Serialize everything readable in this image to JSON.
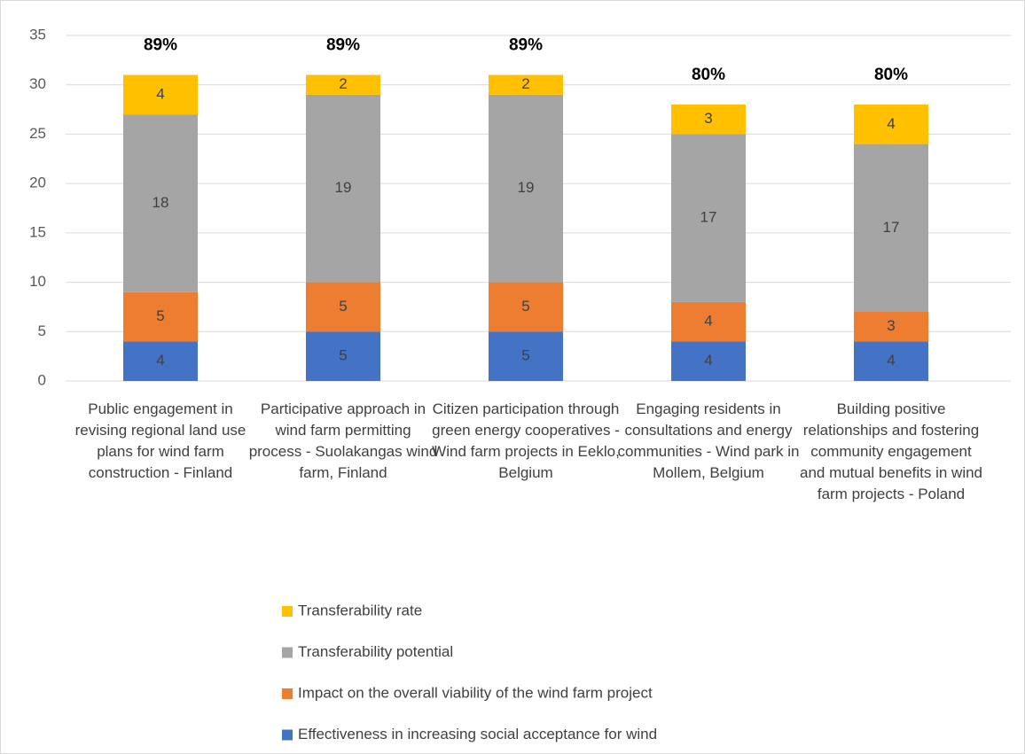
{
  "chart_data": {
    "type": "stacked_bar",
    "categories": [
      "Public engagement in revising regional land use plans for wind farm construction - Finland",
      "Participative approach in wind farm permitting process - Suolakangas wind farm, Finland",
      "Citizen participation through green energy cooperatives - Wind farm projects in Eeklo, Belgium",
      "Engaging residents in consultations and energy communities - Wind park in Mollem, Belgium",
      "Building positive relationships and fostering community engagement and mutual benefits in wind farm projects - Poland"
    ],
    "series": [
      {
        "name": "Effectiveness in increasing social acceptance for wind",
        "color": "#4472c4",
        "values": [
          4,
          5,
          5,
          4,
          4
        ]
      },
      {
        "name": "Impact on the overall viability of the wind farm project",
        "color": "#ed7d31",
        "values": [
          5,
          5,
          5,
          4,
          3
        ]
      },
      {
        "name": "Transferability potential",
        "color": "#a5a5a5",
        "values": [
          18,
          19,
          19,
          17,
          17
        ]
      },
      {
        "name": "Transferability rate",
        "color": "#ffc000",
        "values": [
          4,
          2,
          2,
          3,
          4
        ]
      }
    ],
    "percent_values": [
      89,
      89,
      89,
      80,
      80
    ],
    "percent_labels": [
      "89%",
      "89%",
      "89%",
      "80%",
      "80%"
    ],
    "ylim": [
      0,
      35
    ],
    "yticks": [
      0,
      5,
      10,
      15,
      20,
      25,
      30,
      35
    ],
    "grid": true,
    "legend": "bottom"
  }
}
